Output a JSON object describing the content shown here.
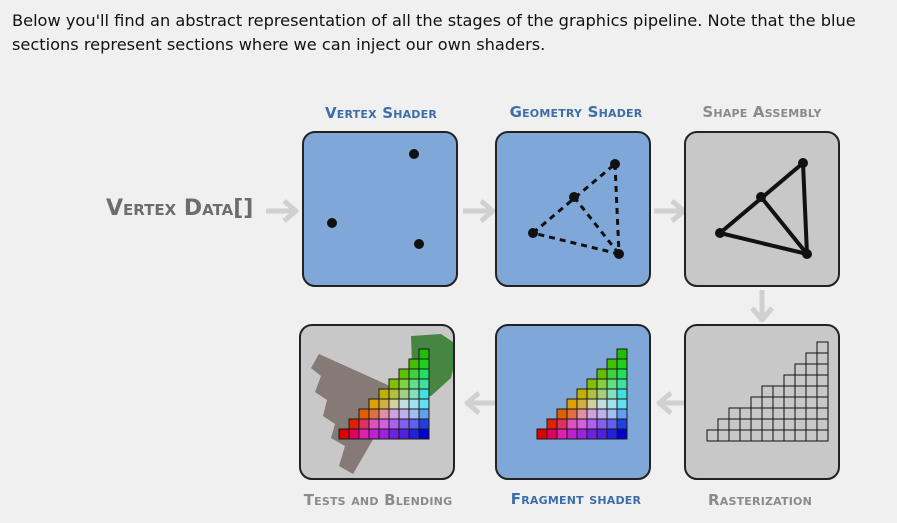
{
  "intro_text": "Below you'll find an abstract representation of all the stages of the graphics pipeline. Note that the blue sections represent sections where we can inject our own shaders.",
  "input_label": "Vertex Data[]",
  "stages": [
    {
      "label": "Vertex Shader",
      "programmable": true
    },
    {
      "label": "Geometry Shader",
      "programmable": true
    },
    {
      "label": "Shape Assembly",
      "programmable": false
    },
    {
      "label": "Rasterization",
      "programmable": false
    },
    {
      "label": "Fragment shader",
      "programmable": true
    },
    {
      "label": "Tests and Blending",
      "programmable": false
    }
  ],
  "colors": {
    "programmable_fill": "#7fa7d8",
    "fixed_fill": "#c8c8c8",
    "programmable_label": "#3d6ea8",
    "fixed_label": "#8a8a8a",
    "arrow": "#d0d0d0"
  }
}
